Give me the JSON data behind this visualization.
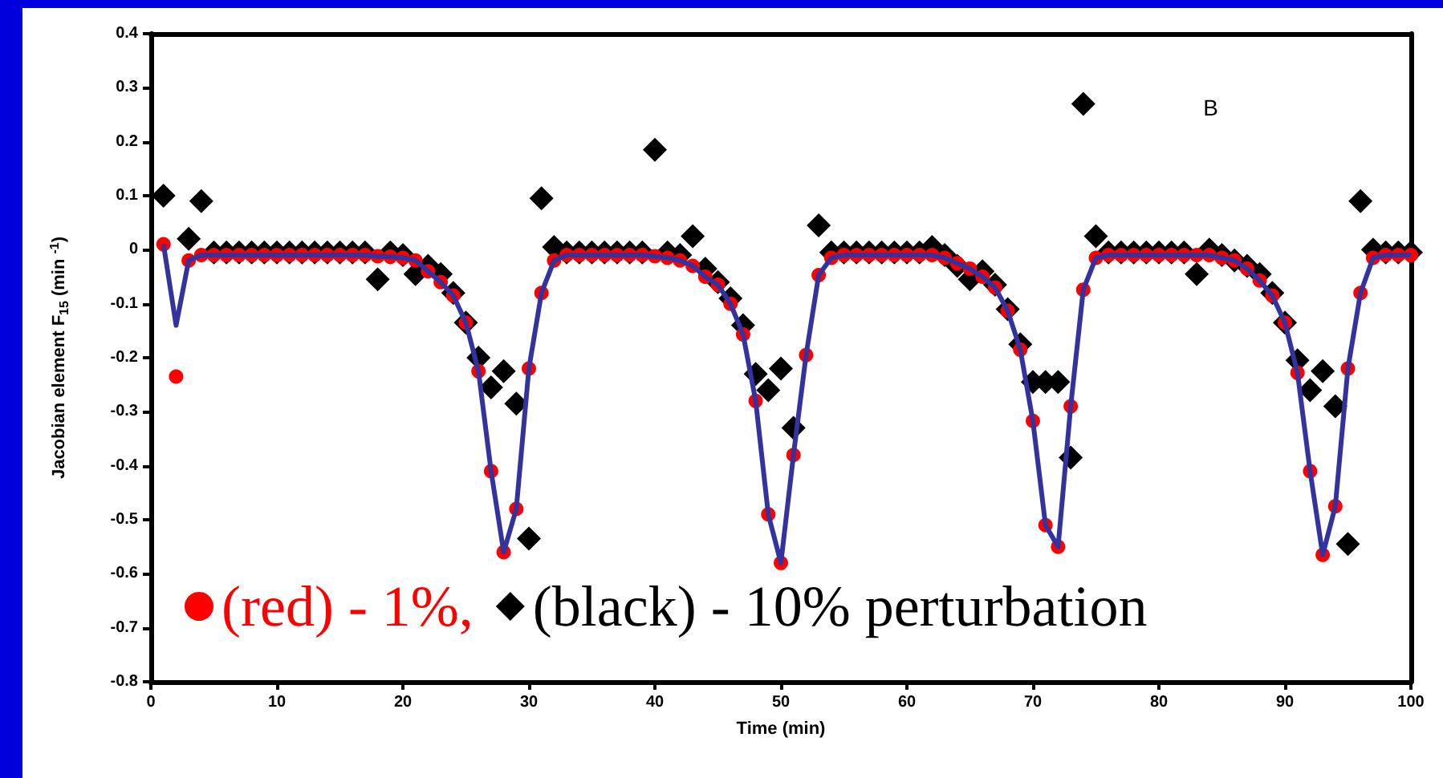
{
  "chart_data": {
    "type": "scatter",
    "xlabel": "Time (min)",
    "ylabel": "Jacobian element F$_{15}$ (min $^{-1}$)",
    "annotations": [
      "B"
    ],
    "x": [
      1,
      2,
      3,
      4,
      5,
      6,
      7,
      8,
      9,
      10,
      11,
      12,
      13,
      14,
      15,
      16,
      17,
      18,
      19,
      20,
      21,
      22,
      23,
      24,
      25,
      26,
      27,
      28,
      29,
      30,
      31,
      32,
      33,
      34,
      35,
      36,
      37,
      38,
      39,
      40,
      41,
      42,
      43,
      44,
      45,
      46,
      47,
      48,
      49,
      50,
      51,
      52,
      53,
      54,
      55,
      56,
      57,
      58,
      59,
      60,
      61,
      62,
      63,
      64,
      65,
      66,
      67,
      68,
      69,
      70,
      71,
      72,
      73,
      74,
      75,
      76,
      77,
      78,
      79,
      80,
      81,
      82,
      83,
      84,
      85,
      86,
      87,
      88,
      89,
      90,
      91,
      92,
      93,
      94,
      95,
      96,
      97,
      98,
      99,
      100
    ],
    "xlim": [
      0,
      100
    ],
    "xticks": [
      0,
      10,
      20,
      30,
      40,
      50,
      60,
      70,
      80,
      90,
      100
    ],
    "ylim": [
      -0.8,
      0.4
    ],
    "yticks": [
      -0.8,
      -0.7,
      -0.6,
      -0.5,
      -0.4,
      -0.3,
      -0.2,
      -0.1,
      0,
      0.1,
      0.2,
      0.3,
      0.4
    ],
    "grid": false,
    "legend": "bottom left",
    "series": [
      {
        "type": "line",
        "color": "#3333a0",
        "marker": "none",
        "line_style": "solid",
        "values": [
          0.01,
          -0.14,
          -0.02,
          -0.01,
          -0.01,
          -0.01,
          -0.01,
          -0.01,
          -0.01,
          -0.01,
          -0.01,
          -0.01,
          -0.01,
          -0.01,
          -0.01,
          -0.01,
          -0.01,
          -0.012,
          -0.013,
          -0.015,
          -0.02,
          -0.04,
          -0.06,
          -0.085,
          -0.135,
          -0.225,
          -0.41,
          -0.56,
          -0.48,
          -0.22,
          -0.08,
          -0.02,
          -0.01,
          -0.01,
          -0.01,
          -0.01,
          -0.01,
          -0.01,
          -0.01,
          -0.012,
          -0.015,
          -0.02,
          -0.03,
          -0.05,
          -0.065,
          -0.1,
          -0.157,
          -0.28,
          -0.49,
          -0.58,
          -0.38,
          -0.195,
          -0.047,
          -0.015,
          -0.01,
          -0.01,
          -0.01,
          -0.01,
          -0.01,
          -0.01,
          -0.01,
          -0.01,
          -0.015,
          -0.025,
          -0.035,
          -0.05,
          -0.07,
          -0.113,
          -0.185,
          -0.317,
          -0.51,
          -0.55,
          -0.29,
          -0.074,
          -0.015,
          -0.01,
          -0.01,
          -0.01,
          -0.01,
          -0.01,
          -0.01,
          -0.01,
          -0.01,
          -0.01,
          -0.015,
          -0.02,
          -0.035,
          -0.057,
          -0.085,
          -0.135,
          -0.228,
          -0.41,
          -0.565,
          -0.475,
          -0.22,
          -0.08,
          -0.015,
          -0.01,
          -0.01,
          -0.01
        ]
      },
      {
        "name": "(black) - 10% perturbation",
        "color": "#000000",
        "marker": "diamond",
        "values": [
          0.1,
          null,
          0.02,
          0.09,
          -0.005,
          -0.005,
          -0.005,
          -0.005,
          -0.005,
          -0.005,
          -0.005,
          -0.005,
          -0.005,
          -0.005,
          -0.005,
          -0.005,
          -0.005,
          -0.055,
          -0.005,
          -0.01,
          -0.045,
          -0.03,
          -0.045,
          -0.08,
          -0.135,
          -0.2,
          -0.255,
          -0.225,
          -0.285,
          -0.535,
          0.095,
          0.005,
          -0.005,
          -0.005,
          -0.005,
          -0.005,
          -0.005,
          -0.005,
          -0.005,
          0.185,
          -0.005,
          -0.01,
          0.025,
          -0.035,
          -0.06,
          -0.09,
          -0.14,
          -0.23,
          -0.26,
          -0.22,
          -0.33,
          null,
          0.045,
          -0.005,
          -0.005,
          -0.005,
          -0.005,
          -0.005,
          -0.005,
          -0.005,
          -0.005,
          0.005,
          -0.01,
          -0.03,
          -0.055,
          -0.04,
          -0.065,
          -0.11,
          -0.175,
          -0.245,
          -0.245,
          -0.245,
          -0.385,
          0.27,
          0.025,
          -0.005,
          -0.005,
          -0.005,
          -0.005,
          -0.005,
          -0.005,
          -0.005,
          -0.045,
          0.0,
          -0.01,
          -0.02,
          -0.03,
          -0.045,
          -0.08,
          -0.135,
          -0.205,
          -0.26,
          -0.225,
          -0.29,
          -0.545,
          0.09,
          0.0,
          -0.005,
          -0.005,
          -0.005
        ]
      },
      {
        "name": "(red) - 1%,",
        "color": "#ff0000",
        "marker": "circle",
        "values": [
          0.01,
          -0.235,
          -0.02,
          -0.01,
          -0.01,
          -0.01,
          -0.01,
          -0.01,
          -0.01,
          -0.01,
          -0.01,
          -0.01,
          -0.01,
          -0.01,
          -0.01,
          -0.01,
          -0.01,
          -0.012,
          -0.013,
          -0.015,
          -0.02,
          -0.04,
          -0.06,
          -0.085,
          -0.135,
          -0.225,
          -0.41,
          -0.56,
          -0.48,
          -0.22,
          -0.08,
          -0.02,
          -0.01,
          -0.01,
          -0.01,
          -0.01,
          -0.01,
          -0.01,
          -0.01,
          -0.012,
          -0.015,
          -0.02,
          -0.03,
          -0.05,
          -0.065,
          -0.1,
          -0.157,
          -0.28,
          -0.49,
          -0.58,
          -0.38,
          -0.195,
          -0.047,
          -0.015,
          -0.01,
          -0.01,
          -0.01,
          -0.01,
          -0.01,
          -0.01,
          -0.01,
          -0.01,
          -0.015,
          -0.025,
          -0.035,
          -0.05,
          -0.07,
          -0.113,
          -0.185,
          -0.317,
          -0.51,
          -0.55,
          -0.29,
          -0.074,
          -0.015,
          -0.01,
          -0.01,
          -0.01,
          -0.01,
          -0.01,
          -0.01,
          -0.01,
          -0.01,
          -0.01,
          -0.015,
          -0.02,
          -0.035,
          -0.057,
          -0.085,
          -0.135,
          -0.228,
          -0.41,
          -0.565,
          -0.475,
          -0.22,
          -0.08,
          -0.015,
          -0.01,
          -0.01,
          -0.01
        ]
      }
    ]
  }
}
